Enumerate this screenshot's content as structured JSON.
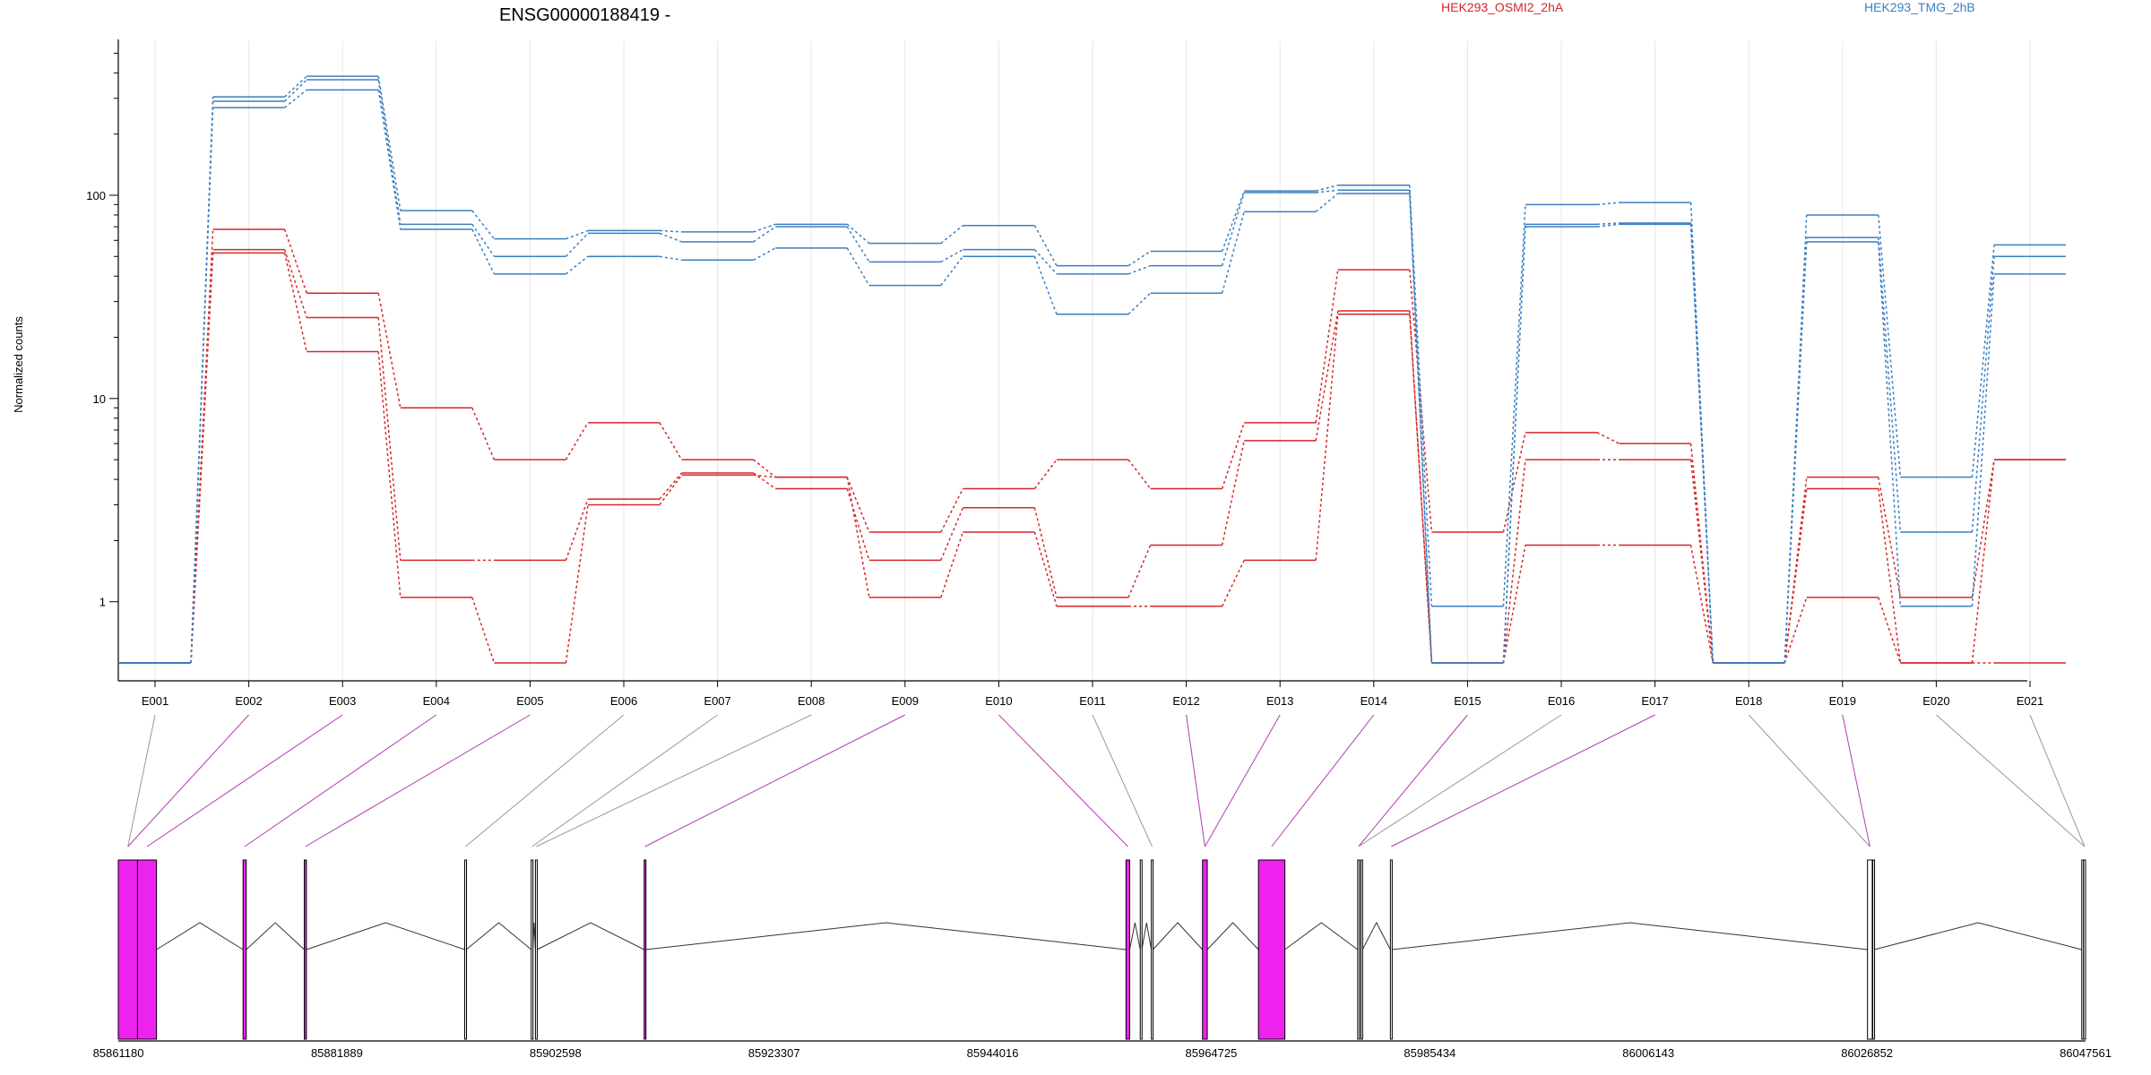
{
  "chart_data": {
    "type": "line",
    "title": "ENSG00000188419 -",
    "ylabel": "Normalized counts",
    "yscale": "log",
    "ylim": [
      0.5,
      550
    ],
    "yticks": [
      "1",
      "10",
      "100"
    ],
    "categories": [
      "E001",
      "E002",
      "E003",
      "E004",
      "E005",
      "E006",
      "E007",
      "E008",
      "E009",
      "E010",
      "E011",
      "E012",
      "E013",
      "E014",
      "E015",
      "E016",
      "E017",
      "E018",
      "E019",
      "E020",
      "E021"
    ],
    "groups": [
      {
        "name": "HEK293_OSMI2_2hA",
        "color": "#d62728"
      },
      {
        "name": "HEK293_TMG_2hB",
        "color": "#3a7fc1"
      }
    ],
    "series": [
      {
        "group": 0,
        "values": [
          0.5,
          68,
          33,
          9,
          5,
          7.6,
          5,
          4.1,
          2.2,
          3.6,
          5,
          3.6,
          7.6,
          43,
          2.2,
          6.8,
          6,
          0.5,
          4.1,
          1.05,
          5
        ]
      },
      {
        "group": 0,
        "values": [
          0.5,
          54,
          25,
          1.6,
          1.6,
          3.2,
          4.3,
          3.6,
          1.6,
          2.9,
          1.05,
          1.9,
          6.2,
          27,
          0.5,
          5,
          5,
          0.5,
          3.6,
          0.5,
          5
        ]
      },
      {
        "group": 0,
        "values": [
          0.5,
          52,
          17,
          1.05,
          0.5,
          3,
          4.2,
          4.1,
          1.05,
          2.2,
          0.95,
          0.95,
          1.6,
          26,
          0.5,
          1.9,
          1.9,
          0.5,
          1.05,
          0.5,
          0.5
        ]
      },
      {
        "group": 1,
        "values": [
          0.5,
          305,
          385,
          84,
          61,
          67,
          66,
          72,
          58,
          71,
          45,
          53,
          105,
          112,
          0.95,
          90,
          92,
          0.5,
          80,
          4.1,
          57
        ]
      },
      {
        "group": 1,
        "values": [
          0.5,
          290,
          370,
          72,
          50,
          65,
          59,
          70,
          47,
          54,
          41,
          45,
          103,
          106,
          0.5,
          72,
          73,
          0.5,
          62,
          2.2,
          50
        ]
      },
      {
        "group": 1,
        "values": [
          0.5,
          270,
          330,
          68,
          41,
          50,
          48,
          55,
          36,
          50,
          26,
          33,
          83,
          102,
          0.5,
          70,
          72,
          0.5,
          59,
          0.95,
          41
        ]
      }
    ]
  },
  "gene_model": {
    "coordinates": [
      "85861180",
      "85881889",
      "85902598",
      "85923307",
      "85944016",
      "85964725",
      "85985434",
      "86006143",
      "86026852",
      "86047561"
    ],
    "coord_range": [
      85861180,
      86047561
    ],
    "exons": [
      {
        "id": "E001",
        "start": 85861180,
        "end": 85863000,
        "significant": true
      },
      {
        "id": "E002",
        "start": 85863000,
        "end": 85864800,
        "significant": true
      },
      {
        "id": "E003",
        "start": 85873000,
        "end": 85873300,
        "significant": true
      },
      {
        "id": "E004",
        "start": 85878800,
        "end": 85879000,
        "significant": true
      },
      {
        "id": "E005",
        "start": 85894000,
        "end": 85894150,
        "significant": false
      },
      {
        "id": "E006",
        "start": 85900300,
        "end": 85900450,
        "significant": false
      },
      {
        "id": "E007",
        "start": 85900700,
        "end": 85900850,
        "significant": false
      },
      {
        "id": "E008",
        "start": 85911000,
        "end": 85911150,
        "significant": true
      },
      {
        "id": "E009",
        "start": 85956650,
        "end": 85957000,
        "significant": true
      },
      {
        "id": "E010",
        "start": 85958000,
        "end": 85958150,
        "significant": false
      },
      {
        "id": "E011",
        "start": 85959050,
        "end": 85959200,
        "significant": false
      },
      {
        "id": "E012",
        "start": 85963900,
        "end": 85964350,
        "significant": true
      },
      {
        "id": "E013",
        "start": 85969200,
        "end": 85971700,
        "significant": true
      },
      {
        "id": "E014",
        "start": 85978600,
        "end": 85978750,
        "significant": false
      },
      {
        "id": "E015",
        "start": 85978900,
        "end": 85979050,
        "significant": false
      },
      {
        "id": "E016",
        "start": 85981700,
        "end": 85981850,
        "significant": false
      },
      {
        "id": "E017",
        "start": 86026900,
        "end": 86027350,
        "significant": false
      },
      {
        "id": "E018",
        "start": 86027400,
        "end": 86027550,
        "significant": false
      },
      {
        "id": "E019",
        "start": 86047200,
        "end": 86047350,
        "significant": false
      },
      {
        "id": "E020",
        "start": 86047380,
        "end": 86047561,
        "significant": false
      }
    ],
    "links": [
      {
        "label": 0,
        "exon": 0,
        "significant": false
      },
      {
        "label": 1,
        "exon": 0,
        "significant": true
      },
      {
        "label": 2,
        "exon": 1,
        "significant": true
      },
      {
        "label": 3,
        "exon": 2,
        "significant": true
      },
      {
        "label": 4,
        "exon": 3,
        "significant": true
      },
      {
        "label": 5,
        "exon": 4,
        "significant": false
      },
      {
        "label": 6,
        "exon": 5,
        "significant": false
      },
      {
        "label": 7,
        "exon": 6,
        "significant": false
      },
      {
        "label": 8,
        "exon": 7,
        "significant": true
      },
      {
        "label": 9,
        "exon": 8,
        "significant": true
      },
      {
        "label": 10,
        "exon": 10,
        "significant": false
      },
      {
        "label": 11,
        "exon": 11,
        "significant": true
      },
      {
        "label": 12,
        "exon": 11,
        "significant": true
      },
      {
        "label": 13,
        "exon": 12,
        "significant": true
      },
      {
        "label": 14,
        "exon": 13,
        "significant": true
      },
      {
        "label": 15,
        "exon": 13,
        "significant": false
      },
      {
        "label": 16,
        "exon": 15,
        "significant": true
      },
      {
        "label": 17,
        "exon": 16,
        "significant": false
      },
      {
        "label": 18,
        "exon": 16,
        "significant": true
      },
      {
        "label": 19,
        "exon": 19,
        "significant": false
      },
      {
        "label": 20,
        "exon": 19,
        "significant": false
      }
    ],
    "colors": {
      "significant": "#ee22ee",
      "link_significant": "#b03cb0",
      "link_plain": "#999999"
    }
  }
}
